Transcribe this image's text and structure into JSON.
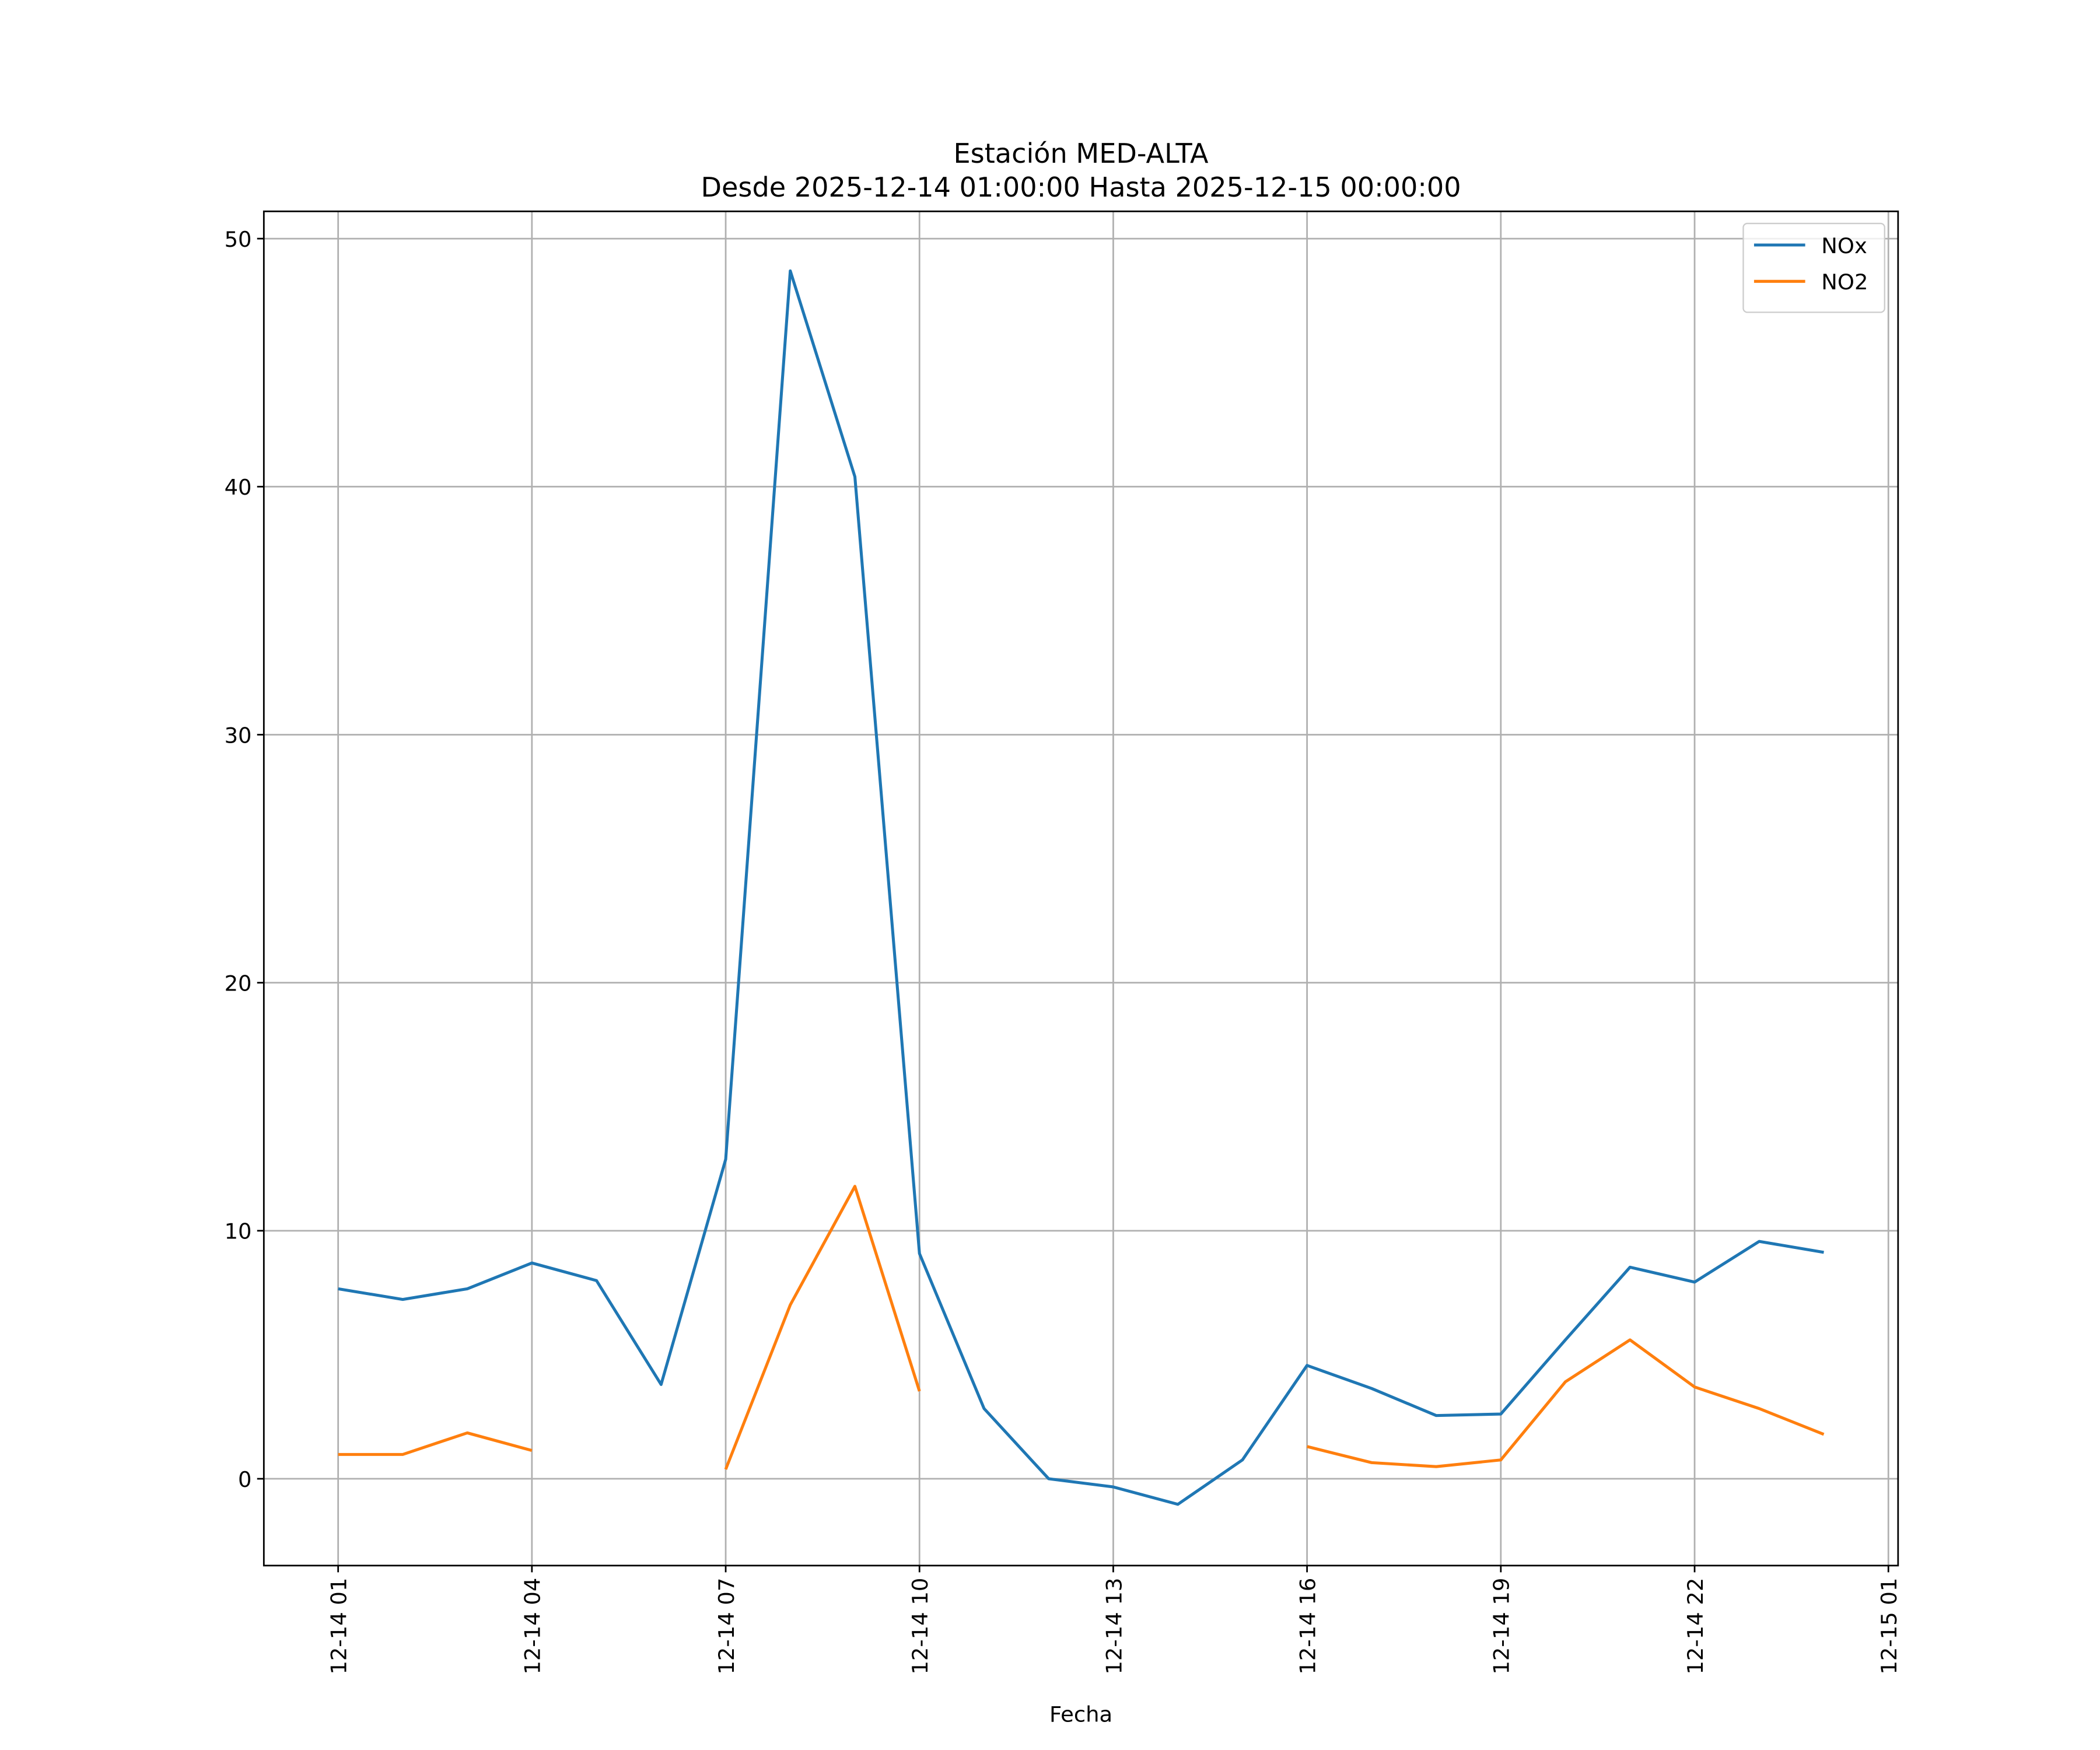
{
  "chart_data": {
    "type": "line",
    "title": "Estación MED-ALTA",
    "subtitle": "Desde 2025-12-14 01:00:00 Hasta 2025-12-15 00:00:00",
    "x_label": "Fecha",
    "x": [
      "12-14 01",
      "12-14 02",
      "12-14 03",
      "12-14 04",
      "12-14 05",
      "12-14 06",
      "12-14 07",
      "12-14 08",
      "12-14 09",
      "12-14 10",
      "12-14 11",
      "12-14 12",
      "12-14 13",
      "12-14 14",
      "12-14 15",
      "12-14 16",
      "12-14 17",
      "12-14 18",
      "12-14 19",
      "12-14 20",
      "12-14 21",
      "12-14 22",
      "12-14 23",
      "12-15 00"
    ],
    "series": [
      {
        "name": "NOx",
        "color": "#1f77b4",
        "values": [
          7.66,
          7.23,
          7.66,
          8.7,
          7.99,
          3.8,
          12.88,
          48.7,
          40.4,
          9.08,
          2.83,
          0.0,
          -0.33,
          -1.03,
          0.76,
          4.57,
          3.64,
          2.55,
          2.61,
          5.6,
          8.53,
          7.93,
          9.57,
          9.13
        ]
      },
      {
        "name": "NO2",
        "color": "#ff7f0e",
        "values": [
          0.98,
          0.98,
          1.85,
          1.14,
          null,
          null,
          0.38,
          7.01,
          11.79,
          3.53,
          null,
          null,
          null,
          null,
          null,
          1.3,
          0.65,
          0.49,
          0.76,
          3.91,
          5.6,
          3.7,
          2.83,
          1.79
        ]
      }
    ],
    "xlim": [
      "12-13 23:51",
      "12-15 01:09"
    ],
    "xticks": [
      "12-14 01",
      "12-14 04",
      "12-14 07",
      "12-14 10",
      "12-14 13",
      "12-14 16",
      "12-14 19",
      "12-14 22",
      "12-15 01"
    ],
    "ylim": [
      -3.5,
      51.1
    ],
    "yticks": [
      0,
      10,
      20,
      30,
      40,
      50
    ],
    "grid": true,
    "legend": "upper right"
  }
}
